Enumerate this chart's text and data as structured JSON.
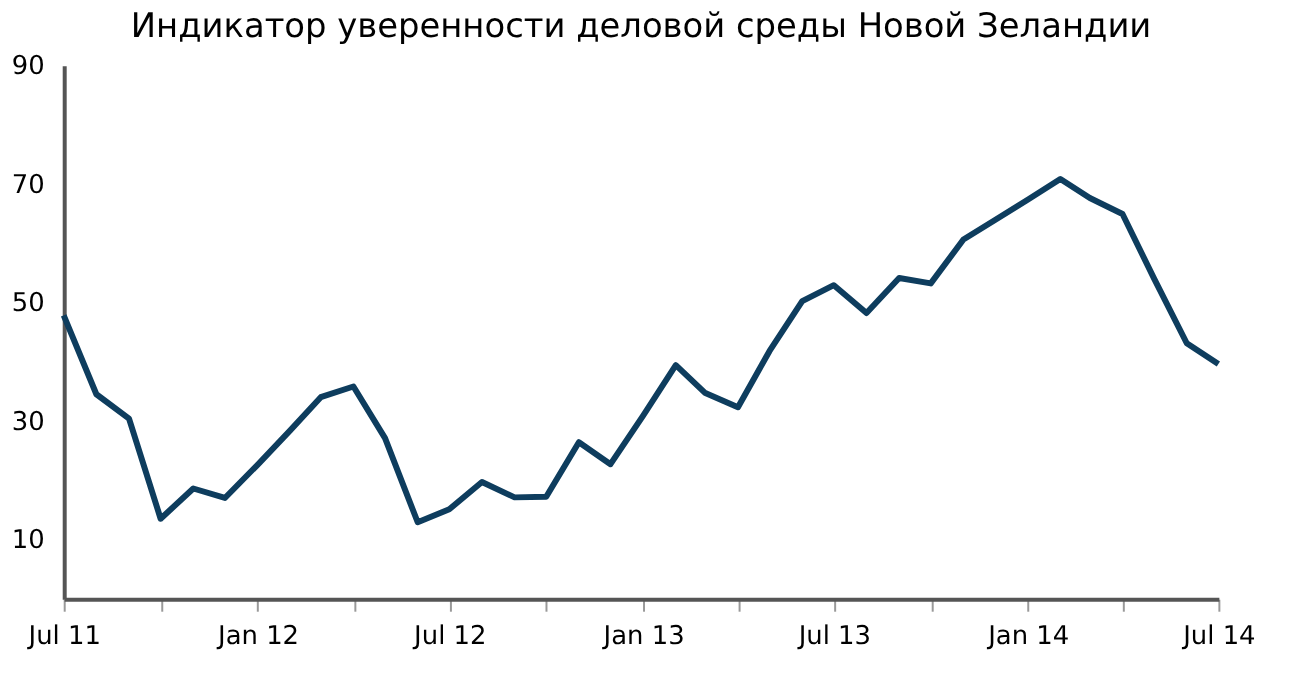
{
  "chart_data": {
    "type": "line",
    "title": "Индикатор уверенности деловой среды Новой Зеландии",
    "x": [
      "2011-07",
      "2011-08",
      "2011-09",
      "2011-10",
      "2011-11",
      "2011-12",
      "2012-01",
      "2012-02",
      "2012-03",
      "2012-04",
      "2012-05",
      "2012-06",
      "2012-07",
      "2012-08",
      "2012-09",
      "2012-10",
      "2012-11",
      "2012-12",
      "2013-01",
      "2013-02",
      "2013-03",
      "2013-04",
      "2013-05",
      "2013-06",
      "2013-07",
      "2013-08",
      "2013-09",
      "2013-10",
      "2013-11",
      "2013-12",
      "2014-01",
      "2014-02",
      "2014-03",
      "2014-04",
      "2014-05",
      "2014-06",
      "2014-07"
    ],
    "series": [
      {
        "color": "#0e3d5e",
        "values": [
          47.8,
          34.5,
          30.4,
          13.5,
          18.6,
          17.0,
          22.6,
          28.4,
          34.0,
          35.8,
          27.1,
          12.9,
          15.1,
          19.7,
          17.1,
          17.2,
          26.4,
          22.7,
          30.9,
          39.4,
          34.7,
          32.3,
          41.8,
          50.2,
          52.9,
          48.2,
          54.1,
          53.2,
          60.6,
          63.9,
          67.3,
          70.8,
          67.6,
          64.9,
          54.0,
          43.1,
          39.6
        ]
      }
    ],
    "xlim": [
      "2011-07",
      "2014-07"
    ],
    "xticks": [
      {
        "value": "2011-07",
        "label": "Jul 11"
      },
      {
        "value": "2011-10",
        "label": null
      },
      {
        "value": "2012-01",
        "label": "Jan 12"
      },
      {
        "value": "2012-04",
        "label": null
      },
      {
        "value": "2012-07",
        "label": "Jul 12"
      },
      {
        "value": "2012-10",
        "label": null
      },
      {
        "value": "2013-01",
        "label": "Jan 13"
      },
      {
        "value": "2013-04",
        "label": null
      },
      {
        "value": "2013-07",
        "label": "Jul 13"
      },
      {
        "value": "2013-10",
        "label": null
      },
      {
        "value": "2014-01",
        "label": "Jan 14"
      },
      {
        "value": "2014-04",
        "label": null
      },
      {
        "value": "2014-07",
        "label": "Jul 14"
      }
    ],
    "ylim": [
      0,
      90
    ],
    "yticks": [
      10,
      30,
      50,
      70,
      90
    ],
    "grid": false,
    "legend": false,
    "marker": "none",
    "line_style": "solid"
  }
}
